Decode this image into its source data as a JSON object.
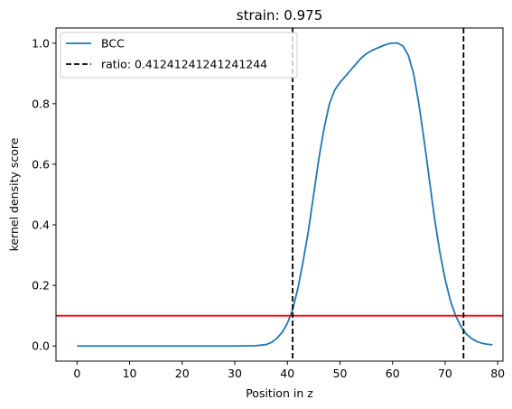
{
  "chart_data": {
    "type": "line",
    "title": "strain: 0.975",
    "xlabel": "Position in z",
    "ylabel": "kernel density score",
    "xlim": [
      -4,
      81
    ],
    "ylim": [
      -0.05,
      1.05
    ],
    "xticks": [
      0,
      10,
      20,
      30,
      40,
      50,
      60,
      70,
      80
    ],
    "yticks": [
      0.0,
      0.2,
      0.4,
      0.6,
      0.8,
      1.0
    ],
    "xtick_labels": [
      "0",
      "10",
      "20",
      "30",
      "40",
      "50",
      "60",
      "70",
      "80"
    ],
    "ytick_labels": [
      "0.0",
      "0.2",
      "0.4",
      "0.6",
      "0.8",
      "1.0"
    ],
    "grid": false,
    "legend_position": "top-left",
    "series": [
      {
        "name": "BCC",
        "color": "#1f77b4",
        "style": "solid",
        "x": [
          0,
          10,
          20,
          30,
          34,
          36,
          37,
          38,
          39,
          40,
          41,
          42,
          43,
          44,
          45,
          46,
          47,
          48,
          49,
          50,
          51,
          52,
          53,
          54,
          55,
          56,
          57,
          58,
          59,
          60,
          61,
          62,
          63,
          64,
          65,
          66,
          67,
          68,
          69,
          70,
          71,
          72,
          73,
          74,
          75,
          76,
          77,
          78,
          79
        ],
        "y": [
          0.0,
          0.0,
          0.0,
          0.0,
          0.001,
          0.005,
          0.012,
          0.025,
          0.045,
          0.075,
          0.12,
          0.19,
          0.28,
          0.38,
          0.5,
          0.62,
          0.72,
          0.8,
          0.845,
          0.87,
          0.89,
          0.91,
          0.93,
          0.95,
          0.965,
          0.975,
          0.983,
          0.99,
          0.997,
          1.0,
          1.0,
          0.99,
          0.96,
          0.9,
          0.8,
          0.68,
          0.55,
          0.42,
          0.31,
          0.22,
          0.15,
          0.1,
          0.065,
          0.04,
          0.025,
          0.015,
          0.009,
          0.006,
          0.004
        ]
      }
    ],
    "vlines": [
      {
        "name": "ratio: 0.41241241241241244",
        "x": [
          41.0,
          73.5
        ],
        "color": "#000000",
        "style": "dashed"
      }
    ],
    "hlines": [
      {
        "y": 0.1,
        "color": "#ff0000",
        "style": "solid"
      }
    ]
  }
}
